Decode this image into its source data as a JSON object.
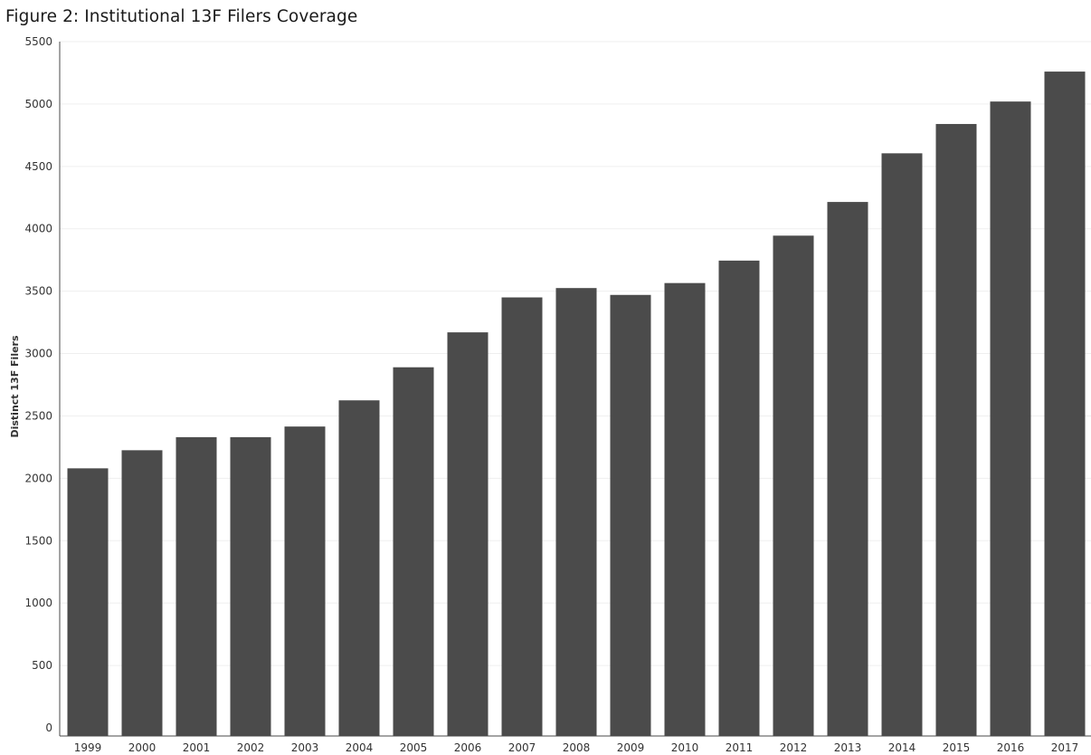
{
  "chart_data": {
    "type": "bar",
    "title": "Figure 2: Institutional 13F Filers Coverage",
    "xlabel": "",
    "ylabel": "Distinct 13F Filers",
    "categories": [
      "1999",
      "2000",
      "2001",
      "2002",
      "2003",
      "2004",
      "2005",
      "2006",
      "2007",
      "2008",
      "2009",
      "2010",
      "2011",
      "2012",
      "2013",
      "2014",
      "2015",
      "2016",
      "2017"
    ],
    "values": [
      2080,
      2225,
      2330,
      2330,
      2415,
      2625,
      2890,
      3170,
      3450,
      3525,
      3470,
      3565,
      3745,
      3945,
      4215,
      4605,
      4840,
      5020,
      5260
    ],
    "ylim": [
      0,
      5500
    ],
    "yticks": [
      0,
      500,
      1000,
      1500,
      2000,
      2500,
      3000,
      3500,
      4000,
      4500,
      5000,
      5500
    ],
    "grid": true,
    "legend": "none",
    "colors": {
      "bar": "#4b4b4b",
      "grid": "#efefef",
      "axis": "#4a4a4a"
    }
  }
}
